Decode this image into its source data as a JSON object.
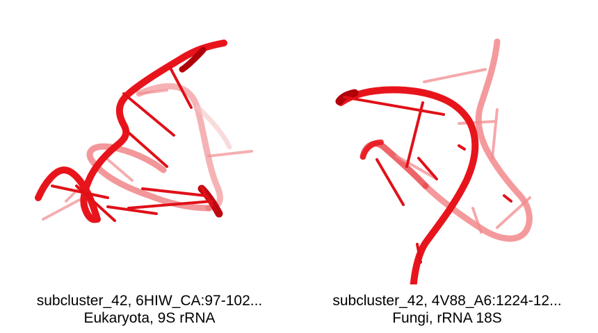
{
  "panels": [
    {
      "title": "subcluster_42, 6HIW_CA:97-102...",
      "subtitle": "Eukaryota, 9S rRNA"
    },
    {
      "title": "subcluster_42, 4V88_A6:1224-12...",
      "subtitle": "Fungi, rRNA 18S"
    }
  ],
  "colors": {
    "backbone": "#e8141c",
    "backbone_dark": "#b0000a",
    "background": "#ffffff",
    "caption_text": "#000000"
  }
}
